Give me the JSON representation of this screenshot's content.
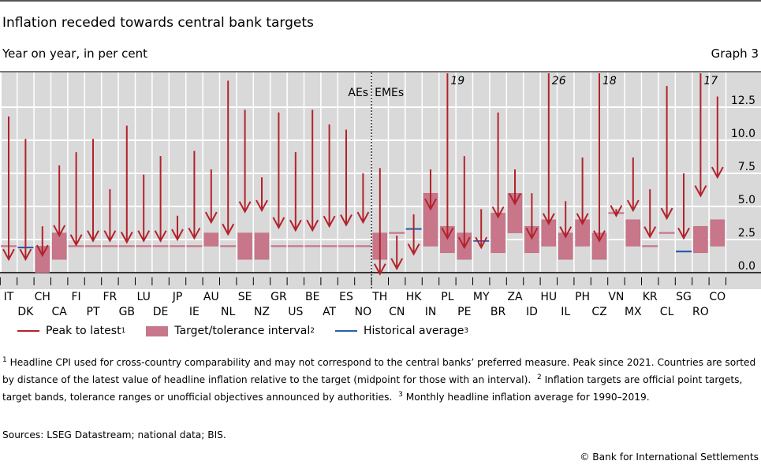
{
  "header": {
    "title": "Inflation receded towards central bank targets",
    "subtitle": "Year on year, in per cent",
    "graph_number": "Graph 3"
  },
  "chart_data": {
    "type": "arrow-range",
    "title": "Inflation receded towards central bank targets",
    "ylabel": "Year on year, in per cent",
    "ylim": [
      -0.5,
      15
    ],
    "yticks": [
      "0.0",
      "2.5",
      "5.0",
      "7.5",
      "10.0",
      "12.5"
    ],
    "y_axis_side": "right",
    "grid": true,
    "groups": [
      {
        "label": "AEs",
        "from": "IT",
        "to": "NO"
      },
      {
        "label": "EMEs",
        "from": "TH",
        "to": "CO"
      }
    ],
    "legend": [
      {
        "label": "Peak to latest",
        "sup": "1",
        "kind": "arrow",
        "color": "#b2222b"
      },
      {
        "label": "Target/tolerance interval",
        "sup": "2",
        "kind": "box",
        "color": "#c8768a"
      },
      {
        "label": "Historical average",
        "sup": "3",
        "kind": "line",
        "color": "#2a5fa8"
      }
    ],
    "legend_placement": "bottom",
    "countries": [
      {
        "code": "IT",
        "peak": 11.8,
        "latest": 1.0,
        "target": 2.0,
        "hist": null,
        "peak_label": null
      },
      {
        "code": "DK",
        "peak": 10.1,
        "latest": 1.0,
        "target": null,
        "hist": 1.9,
        "peak_label": null
      },
      {
        "code": "CH",
        "peak": 3.5,
        "latest": 1.3,
        "target_low": 0,
        "target_high": 2.0,
        "hist": null,
        "peak_label": null
      },
      {
        "code": "CA",
        "peak": 8.1,
        "latest": 2.8,
        "target_low": 1.0,
        "target_high": 3.0,
        "hist": null,
        "peak_label": null
      },
      {
        "code": "FI",
        "peak": 9.1,
        "latest": 2.1,
        "target": 2.0,
        "hist": null,
        "peak_label": null
      },
      {
        "code": "PT",
        "peak": 10.1,
        "latest": 2.4,
        "target": 2.0,
        "hist": null,
        "peak_label": null
      },
      {
        "code": "FR",
        "peak": 6.3,
        "latest": 2.4,
        "target": 2.0,
        "hist": null,
        "peak_label": null
      },
      {
        "code": "GB",
        "peak": 11.1,
        "latest": 2.3,
        "target": 2.0,
        "hist": null,
        "peak_label": null
      },
      {
        "code": "LU",
        "peak": 7.4,
        "latest": 2.4,
        "target": 2.0,
        "hist": null,
        "peak_label": null
      },
      {
        "code": "DE",
        "peak": 8.8,
        "latest": 2.4,
        "target": 2.0,
        "hist": null,
        "peak_label": null
      },
      {
        "code": "JP",
        "peak": 4.3,
        "latest": 2.5,
        "target": 2.0,
        "hist": null,
        "peak_label": null
      },
      {
        "code": "IE",
        "peak": 9.2,
        "latest": 2.6,
        "target": 2.0,
        "hist": null,
        "peak_label": null
      },
      {
        "code": "AU",
        "peak": 7.8,
        "latest": 3.8,
        "target_low": 2.0,
        "target_high": 3.0,
        "hist": null,
        "peak_label": null
      },
      {
        "code": "NL",
        "peak": 14.5,
        "latest": 2.9,
        "target": 2.0,
        "hist": null,
        "peak_label": null
      },
      {
        "code": "SE",
        "peak": 12.3,
        "latest": 4.6,
        "target_low": 1.0,
        "target_high": 3.0,
        "hist": null,
        "peak_label": null
      },
      {
        "code": "NZ",
        "peak": 7.2,
        "latest": 4.7,
        "target_low": 1.0,
        "target_high": 3.0,
        "hist": null,
        "peak_label": null
      },
      {
        "code": "GR",
        "peak": 12.1,
        "latest": 3.4,
        "target": 2.0,
        "hist": null,
        "peak_label": null
      },
      {
        "code": "US",
        "peak": 9.1,
        "latest": 3.2,
        "target": 2.0,
        "hist": null,
        "peak_label": null
      },
      {
        "code": "BE",
        "peak": 12.3,
        "latest": 3.2,
        "target": 2.0,
        "hist": null,
        "peak_label": null
      },
      {
        "code": "AT",
        "peak": 11.2,
        "latest": 3.5,
        "target": 2.0,
        "hist": null,
        "peak_label": null
      },
      {
        "code": "ES",
        "peak": 10.8,
        "latest": 3.6,
        "target": 2.0,
        "hist": null,
        "peak_label": null
      },
      {
        "code": "NO",
        "peak": 7.5,
        "latest": 3.8,
        "target": 2.0,
        "hist": null,
        "peak_label": null
      },
      {
        "code": "TH",
        "peak": 7.9,
        "latest": -0.1,
        "target_low": 1.0,
        "target_high": 3.0,
        "hist": null,
        "peak_label": null
      },
      {
        "code": "CN",
        "peak": 2.8,
        "latest": 0.3,
        "target": 3.0,
        "hist": null,
        "peak_label": null
      },
      {
        "code": "HK",
        "peak": 4.4,
        "latest": 1.4,
        "target": null,
        "hist": 3.3,
        "peak_label": null
      },
      {
        "code": "IN",
        "peak": 7.8,
        "latest": 4.8,
        "target_low": 2.0,
        "target_high": 6.0,
        "hist": null,
        "peak_label": null
      },
      {
        "code": "PL",
        "peak": 19.0,
        "latest": 2.6,
        "target_low": 1.5,
        "target_high": 3.5,
        "hist": null,
        "peak_label": "19"
      },
      {
        "code": "PE",
        "peak": 8.8,
        "latest": 1.9,
        "target_low": 1.0,
        "target_high": 3.0,
        "hist": null,
        "peak_label": null
      },
      {
        "code": "MY",
        "peak": 4.8,
        "latest": 1.9,
        "target": null,
        "hist": 2.4,
        "peak_label": null
      },
      {
        "code": "BR",
        "peak": 12.1,
        "latest": 4.2,
        "target_low": 1.5,
        "target_high": 4.5,
        "hist": null,
        "peak_label": null
      },
      {
        "code": "ZA",
        "peak": 7.8,
        "latest": 5.2,
        "target_low": 3.0,
        "target_high": 6.0,
        "hist": null,
        "peak_label": null
      },
      {
        "code": "ID",
        "peak": 6.0,
        "latest": 2.6,
        "target_low": 1.5,
        "target_high": 3.5,
        "hist": null,
        "peak_label": null
      },
      {
        "code": "HU",
        "peak": 26.0,
        "latest": 3.7,
        "target_low": 2.0,
        "target_high": 4.0,
        "hist": null,
        "peak_label": "26"
      },
      {
        "code": "IL",
        "peak": 5.4,
        "latest": 2.7,
        "target_low": 1.0,
        "target_high": 3.0,
        "hist": null,
        "peak_label": null
      },
      {
        "code": "PH",
        "peak": 8.7,
        "latest": 3.7,
        "target_low": 2.0,
        "target_high": 4.0,
        "hist": null,
        "peak_label": null
      },
      {
        "code": "CZ",
        "peak": 18.0,
        "latest": 2.4,
        "target_low": 1.0,
        "target_high": 3.0,
        "hist": null,
        "peak_label": "18"
      },
      {
        "code": "VN",
        "peak": 4.8,
        "latest": 4.3,
        "target": 4.5,
        "hist": null,
        "peak_label": null
      },
      {
        "code": "MX",
        "peak": 8.7,
        "latest": 4.7,
        "target_low": 2.0,
        "target_high": 4.0,
        "hist": null,
        "peak_label": null
      },
      {
        "code": "KR",
        "peak": 6.3,
        "latest": 2.7,
        "target": 2.0,
        "hist": null,
        "peak_label": null
      },
      {
        "code": "CL",
        "peak": 14.1,
        "latest": 4.1,
        "target": 3.0,
        "hist": null,
        "peak_label": null
      },
      {
        "code": "SG",
        "peak": 7.5,
        "latest": 2.6,
        "target": null,
        "hist": 1.6,
        "peak_label": null
      },
      {
        "code": "RO",
        "peak": 17.0,
        "latest": 5.8,
        "target_low": 1.5,
        "target_high": 3.5,
        "hist": null,
        "peak_label": "17"
      },
      {
        "code": "CO",
        "peak": 13.3,
        "latest": 7.2,
        "target_low": 2.0,
        "target_high": 4.0,
        "hist": null,
        "peak_label": null
      }
    ]
  },
  "footnotes": {
    "f1": "Headline CPI used for cross-country comparability and may not correspond to the central banks’ preferred measure. Peak since 2021. Countries are sorted by distance of the latest value of headline inflation relative to the target (midpoint for those with an interval).",
    "f2": "Inflation targets are official point targets, target bands, tolerance ranges or unofficial objectives announced by authorities.",
    "f3": "Monthly headline inflation average for 1990–2019."
  },
  "sources": "Sources: LSEG Datastream; national data; BIS.",
  "copyright": "© Bank for International Settlements"
}
